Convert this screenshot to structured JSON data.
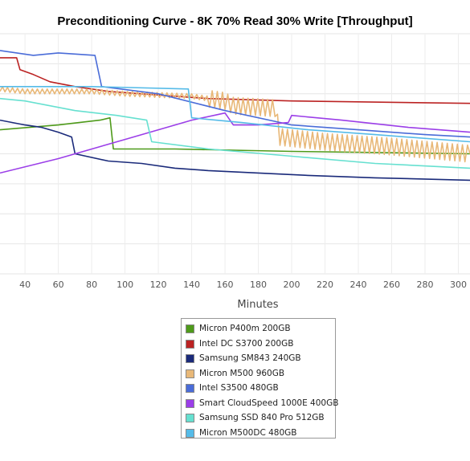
{
  "chart_data": {
    "type": "line",
    "title": "Preconditioning Curve - 8K 70% Read 30% Write [Throughput]",
    "xlabel": "Minutes",
    "ylabel": "",
    "x_ticks": [
      40,
      60,
      80,
      100,
      120,
      140,
      160,
      180,
      200,
      220,
      240,
      260,
      280,
      300
    ],
    "xlim": [
      25,
      307
    ],
    "ylim": [
      0,
      100
    ],
    "grid": true,
    "legend_position": "bottom",
    "series": [
      {
        "name": "Micron P400m 200GB",
        "color": "#4e9a1a",
        "points": [
          [
            25,
            60
          ],
          [
            60,
            62
          ],
          [
            85,
            64
          ],
          [
            91,
            65
          ],
          [
            93,
            52
          ],
          [
            130,
            52
          ],
          [
            200,
            51
          ],
          [
            307,
            50
          ]
        ]
      },
      {
        "name": "Intel DC S3700 200GB",
        "color": "#bb2222",
        "points": [
          [
            25,
            90
          ],
          [
            35,
            90
          ],
          [
            37,
            85
          ],
          [
            45,
            83
          ],
          [
            55,
            80
          ],
          [
            70,
            78
          ],
          [
            90,
            76
          ],
          [
            110,
            75
          ],
          [
            150,
            73
          ],
          [
            200,
            72
          ],
          [
            307,
            71
          ]
        ]
      },
      {
        "name": "Samsung SM843 240GB",
        "color": "#1a2a7a",
        "points": [
          [
            25,
            64
          ],
          [
            40,
            62
          ],
          [
            50,
            61
          ],
          [
            60,
            59
          ],
          [
            68,
            57
          ],
          [
            70,
            50
          ],
          [
            90,
            47
          ],
          [
            110,
            46
          ],
          [
            130,
            44
          ],
          [
            150,
            43
          ],
          [
            180,
            42
          ],
          [
            210,
            41
          ],
          [
            250,
            40
          ],
          [
            307,
            39
          ]
        ]
      },
      {
        "name": "Micron M500 960GB",
        "color": "#e8b878",
        "noise": 2.5,
        "points": [
          [
            25,
            77
          ],
          [
            40,
            76
          ],
          [
            80,
            76
          ],
          [
            100,
            75
          ],
          [
            140,
            74
          ],
          [
            160,
            72
          ],
          [
            165,
            70
          ],
          [
            190,
            69
          ],
          [
            193,
            57
          ],
          [
            220,
            55
          ],
          [
            260,
            53
          ],
          [
            307,
            50
          ]
        ]
      },
      {
        "name": "Intel S3500 480GB",
        "color": "#4a6cd8",
        "points": [
          [
            25,
            93
          ],
          [
            45,
            91
          ],
          [
            60,
            92
          ],
          [
            82,
            91
          ],
          [
            86,
            78
          ],
          [
            120,
            75
          ],
          [
            160,
            68
          ],
          [
            200,
            62
          ],
          [
            240,
            60
          ],
          [
            280,
            58
          ],
          [
            307,
            57
          ]
        ]
      },
      {
        "name": "Smart CloudSpeed 1000E 400GB",
        "color": "#9b3ee8",
        "points": [
          [
            25,
            42
          ],
          [
            60,
            48
          ],
          [
            100,
            56
          ],
          [
            140,
            64
          ],
          [
            160,
            67
          ],
          [
            165,
            62
          ],
          [
            180,
            62
          ],
          [
            198,
            63
          ],
          [
            200,
            66
          ],
          [
            230,
            64
          ],
          [
            270,
            61
          ],
          [
            307,
            59
          ]
        ]
      },
      {
        "name": "Samsung SSD 840 Pro 512GB",
        "color": "#66e0d0",
        "points": [
          [
            25,
            73
          ],
          [
            40,
            72
          ],
          [
            70,
            68
          ],
          [
            95,
            66
          ],
          [
            113,
            64
          ],
          [
            116,
            55
          ],
          [
            150,
            52
          ],
          [
            200,
            49
          ],
          [
            250,
            46
          ],
          [
            307,
            44
          ]
        ]
      },
      {
        "name": "Micron M500DC 480GB",
        "color": "#55bbe8",
        "points": [
          [
            25,
            78
          ],
          [
            80,
            78
          ],
          [
            138,
            77
          ],
          [
            140,
            65
          ],
          [
            170,
            63
          ],
          [
            210,
            60
          ],
          [
            250,
            58
          ],
          [
            307,
            55
          ]
        ]
      }
    ]
  }
}
